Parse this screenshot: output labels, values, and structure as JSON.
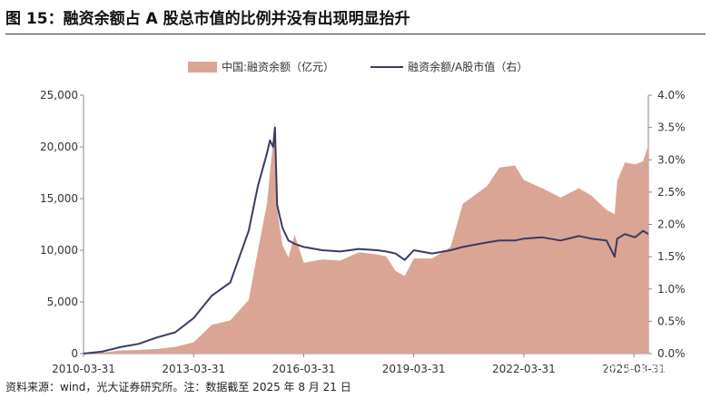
{
  "figure": {
    "title": "图 15：融资余额占 A 股总市值的比例并没有出现明显抬升",
    "source": "资料来源：wind，光大证券研究所。注：数据截至 2025 年 8 月 21 日",
    "watermark": "知乎 @光斗量化"
  },
  "colors": {
    "area": "#dba595",
    "line": "#3a3a63"
  },
  "chart_data": {
    "type": "area",
    "title": "",
    "xlabel": "",
    "ylabel": "",
    "y2label": "",
    "x_ticks": [
      "2010-03-31",
      "2013-03-31",
      "2016-03-31",
      "2019-03-31",
      "2022-03-31",
      "2025-03-31"
    ],
    "y_ticks": [
      "0",
      "5,000",
      "10,000",
      "15,000",
      "20,000",
      "25,000"
    ],
    "y2_ticks": [
      "0.0%",
      "0.5%",
      "1.0%",
      "1.5%",
      "2.0%",
      "2.5%",
      "3.0%",
      "3.5%",
      "4.0%"
    ],
    "ylim": [
      0,
      25000
    ],
    "y2lim": [
      0,
      4.0
    ],
    "x_range": [
      "2010-03-31",
      "2025-08-21"
    ],
    "legend_position": "top-center",
    "grid": false,
    "series": [
      {
        "name": "中国:融资余额（亿元）",
        "type": "area",
        "axis": "left",
        "x": [
          "2010-03-31",
          "2010-09-30",
          "2011-03-31",
          "2011-09-30",
          "2012-03-31",
          "2012-09-30",
          "2013-03-31",
          "2013-09-30",
          "2014-03-31",
          "2014-09-30",
          "2014-12-31",
          "2015-03-31",
          "2015-04-30",
          "2015-05-31",
          "2015-06-18",
          "2015-07-10",
          "2015-08-31",
          "2015-10-31",
          "2015-12-31",
          "2016-03-31",
          "2016-09-30",
          "2017-03-31",
          "2017-09-30",
          "2018-03-31",
          "2018-06-30",
          "2018-09-30",
          "2018-12-31",
          "2019-03-31",
          "2019-09-30",
          "2020-03-31",
          "2020-07-31",
          "2021-03-31",
          "2021-07-31",
          "2021-12-31",
          "2022-03-31",
          "2022-09-30",
          "2023-03-31",
          "2023-09-30",
          "2024-01-31",
          "2024-06-30",
          "2024-09-20",
          "2024-10-15",
          "2024-12-31",
          "2025-04-10",
          "2025-06-30",
          "2025-08-21"
        ],
        "values": [
          0,
          100,
          300,
          350,
          450,
          650,
          1100,
          2800,
          3200,
          5200,
          10000,
          14500,
          17500,
          20500,
          22500,
          14000,
          10500,
          9300,
          11500,
          8800,
          9100,
          9000,
          9800,
          9600,
          9400,
          8000,
          7500,
          9200,
          9200,
          10300,
          14500,
          16200,
          18000,
          18200,
          16800,
          16000,
          15100,
          16000,
          15300,
          13900,
          13500,
          16700,
          18500,
          18300,
          18600,
          20200
        ]
      },
      {
        "name": "融资余额/A股市值（右）",
        "type": "line",
        "axis": "right",
        "x": [
          "2010-03-31",
          "2010-09-30",
          "2011-03-31",
          "2011-09-30",
          "2012-03-31",
          "2012-09-30",
          "2013-03-31",
          "2013-09-30",
          "2014-03-31",
          "2014-09-30",
          "2014-12-31",
          "2015-03-31",
          "2015-04-30",
          "2015-05-31",
          "2015-06-18",
          "2015-07-10",
          "2015-08-31",
          "2015-10-31",
          "2015-12-31",
          "2016-03-31",
          "2016-09-30",
          "2017-03-31",
          "2017-09-30",
          "2018-03-31",
          "2018-06-30",
          "2018-09-30",
          "2018-12-31",
          "2019-03-31",
          "2019-09-30",
          "2020-03-31",
          "2020-07-31",
          "2021-03-31",
          "2021-07-31",
          "2021-12-31",
          "2022-03-31",
          "2022-09-30",
          "2023-03-31",
          "2023-09-30",
          "2024-01-31",
          "2024-06-30",
          "2024-09-20",
          "2024-10-15",
          "2024-12-31",
          "2025-04-10",
          "2025-06-30",
          "2025-08-21"
        ],
        "values": [
          0.0,
          0.03,
          0.1,
          0.15,
          0.25,
          0.33,
          0.55,
          0.9,
          1.1,
          1.9,
          2.6,
          3.1,
          3.3,
          3.2,
          3.5,
          2.3,
          1.95,
          1.75,
          1.7,
          1.65,
          1.6,
          1.58,
          1.62,
          1.6,
          1.58,
          1.55,
          1.45,
          1.6,
          1.55,
          1.6,
          1.65,
          1.72,
          1.75,
          1.75,
          1.78,
          1.8,
          1.75,
          1.82,
          1.78,
          1.75,
          1.5,
          1.78,
          1.85,
          1.8,
          1.9,
          1.85
        ]
      }
    ]
  }
}
